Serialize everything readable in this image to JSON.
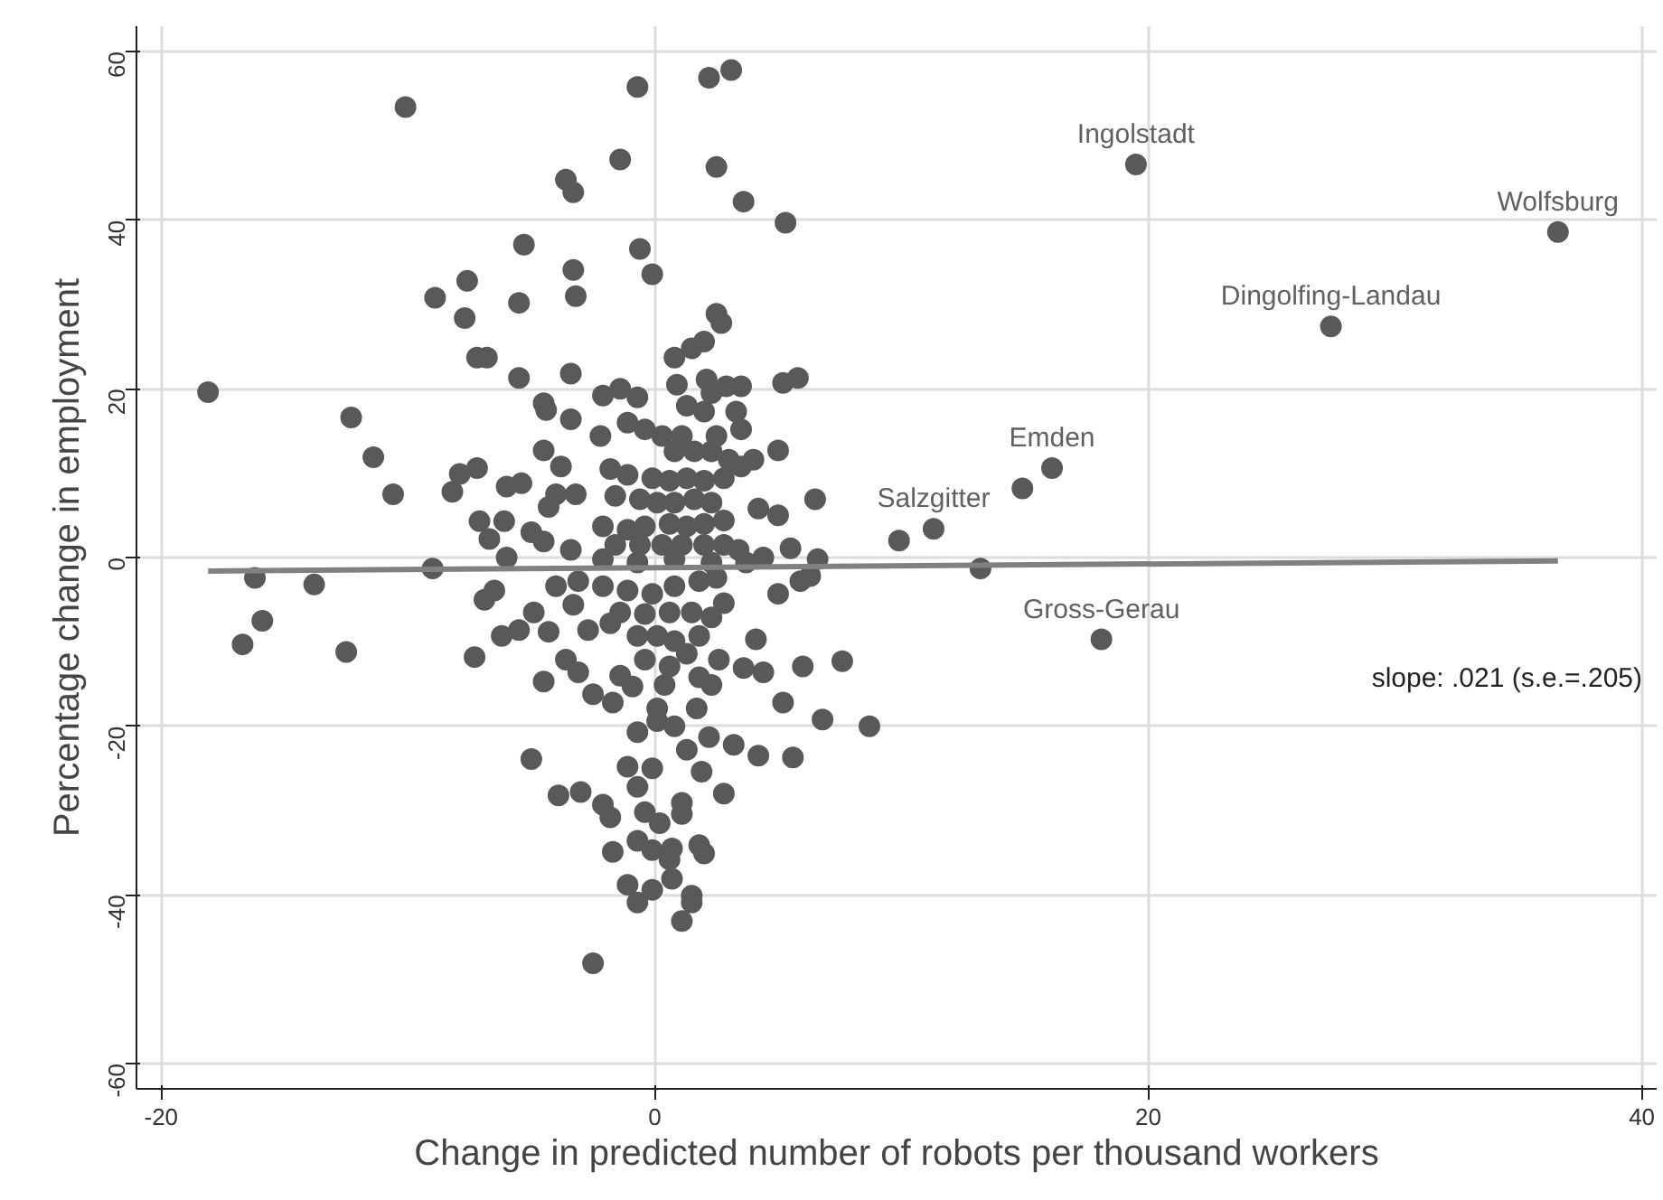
{
  "chart_data": {
    "type": "scatter",
    "xlabel": "Change in predicted number of robots per thousand workers",
    "ylabel": "Percentage change in employment",
    "xlim": [
      -21,
      40.6
    ],
    "ylim": [
      -63,
      63
    ],
    "xticks": [
      -20,
      0,
      20,
      40
    ],
    "yticks": [
      -60,
      -40,
      -20,
      0,
      20,
      40,
      60
    ],
    "grid": true,
    "series": [
      {
        "color": "#595959",
        "marker": "circle",
        "x": [
          19.5,
          36.6,
          27.4,
          16.1,
          14.9,
          11.3,
          9.9,
          13.2,
          18.1,
          7.6,
          -10.1,
          -0.7,
          2.2,
          3.1,
          -1.4,
          2.5,
          -3.6,
          -3.3,
          3.6,
          5.3,
          -5.3,
          -0.6,
          -0.1,
          -3.3,
          -3.2,
          -7.6,
          -8.9,
          -5.5,
          -7.7,
          2.5,
          2.7,
          -7.2,
          -6.8,
          2.0,
          1.5,
          0.8,
          -5.5,
          -3.4,
          -18.1,
          5.2,
          5.8,
          0.9,
          2.1,
          3.5,
          2.9,
          -12.3,
          -11.4,
          -10.6,
          -8.2,
          -7.9,
          -7.2,
          -6.0,
          -5.4,
          -7.1,
          -6.1,
          -6.7,
          -4.5,
          -4.4,
          -3.4,
          -2.1,
          -1.4,
          -0.7,
          -2.2,
          -1.1,
          -4.5,
          -3.8,
          -4.0,
          -3.2,
          -4.3,
          -5.0,
          -4.5,
          -3.4,
          5.0,
          4.0,
          4.2,
          5.0,
          6.5,
          5.5,
          3.4,
          4.4,
          6.6,
          -0.4,
          0.3,
          1.1,
          0.8,
          1.6,
          2.3,
          -1.8,
          -1.1,
          -0.1,
          0.6,
          1.3,
          2.0,
          2.8,
          -1.6,
          -0.6,
          0.1,
          0.8,
          1.6,
          2.3,
          -2.1,
          -1.1,
          -0.4,
          0.6,
          1.3,
          2.0,
          2.8,
          -1.6,
          -0.6,
          0.3,
          1.1,
          2.0,
          2.8,
          1.3,
          2.0,
          3.3,
          3.5,
          2.5,
          3.0,
          3.5,
          2.3,
          -16.2,
          -13.8,
          -15.9,
          -16.7,
          -12.5,
          -9.0,
          -7.3,
          -6.9,
          -6.5,
          -6.2,
          -5.5,
          -4.9,
          -4.3,
          -6.0,
          -4.5,
          -3.6,
          -3.1,
          -2.5,
          -1.7,
          -2.7,
          -1.8,
          -4.0,
          -3.3,
          -1.4,
          -0.9,
          -0.4,
          0.1,
          0.6,
          1.3,
          1.8,
          2.3,
          2.8,
          2.6,
          2.3,
          4.1,
          3.6,
          4.4,
          5.0,
          5.9,
          6.3,
          6.0,
          5.2,
          6.8,
          8.7,
          -0.7,
          0.1,
          0.8,
          1.7,
          1.3,
          1.9,
          2.2,
          3.2,
          4.2,
          5.6,
          -5.0,
          -3.9,
          -3.0,
          -2.1,
          -1.8,
          -1.1,
          -0.7,
          -0.1,
          -0.4,
          0.2,
          1.1,
          1.1,
          2.8,
          -1.7,
          -0.7,
          -0.1,
          0.7,
          0.6,
          1.8,
          2.0,
          -1.1,
          -0.1,
          -0.7,
          0.7,
          1.5,
          1.5,
          1.1,
          -2.5,
          -3.1,
          -2.1,
          -1.1,
          -0.1,
          0.8,
          1.8,
          2.5,
          -1.4,
          -0.4,
          0.6,
          1.5,
          -0.7,
          0.8,
          0.4,
          1.8,
          0.1,
          -2.1,
          -0.7,
          0.8,
          2.3,
          3.7
        ],
        "values": [
          46.6,
          38.6,
          27.4,
          10.6,
          8.2,
          3.4,
          2.0,
          -1.3,
          -9.7,
          -12.3,
          53.4,
          55.8,
          56.9,
          57.8,
          47.2,
          46.3,
          44.8,
          43.3,
          42.2,
          39.7,
          37.1,
          36.6,
          33.6,
          34.1,
          31.0,
          32.8,
          30.8,
          30.2,
          28.4,
          28.9,
          27.8,
          23.7,
          23.7,
          25.6,
          24.8,
          23.7,
          21.3,
          21.8,
          19.6,
          20.7,
          21.3,
          20.5,
          21.1,
          20.3,
          20.3,
          16.6,
          11.9,
          7.5,
          7.8,
          9.9,
          10.6,
          8.4,
          8.8,
          4.3,
          4.3,
          2.2,
          18.3,
          17.5,
          16.4,
          19.2,
          20.0,
          19.0,
          14.4,
          16.0,
          12.7,
          10.8,
          7.5,
          7.5,
          6.0,
          3.0,
          1.9,
          0.9,
          12.7,
          11.6,
          5.8,
          5.0,
          6.9,
          1.1,
          0.9,
          0.0,
          -0.2,
          15.2,
          14.4,
          14.4,
          12.6,
          12.6,
          12.6,
          10.5,
          9.8,
          9.4,
          9.1,
          9.4,
          9.1,
          9.4,
          7.3,
          6.9,
          6.5,
          6.5,
          6.9,
          6.5,
          3.7,
          3.3,
          3.7,
          4.0,
          3.7,
          4.0,
          4.4,
          1.5,
          1.5,
          1.5,
          1.5,
          1.5,
          1.5,
          18.0,
          17.3,
          17.3,
          15.2,
          14.4,
          11.6,
          10.8,
          19.5,
          -2.4,
          -3.2,
          -7.5,
          -10.3,
          -11.2,
          -1.3,
          -11.8,
          -5.0,
          -3.9,
          -9.3,
          -8.6,
          -6.5,
          -8.8,
          0.0,
          -14.7,
          -12.1,
          -13.6,
          -16.2,
          -17.2,
          -8.6,
          -7.8,
          -3.4,
          -5.6,
          -14.0,
          -15.3,
          -12.1,
          -9.3,
          -12.9,
          -11.4,
          -9.3,
          -7.1,
          -5.4,
          -12.1,
          -15.1,
          -9.7,
          -13.1,
          -13.6,
          -4.3,
          -2.8,
          -2.2,
          -12.9,
          -17.2,
          -19.2,
          -20.0,
          -20.7,
          -19.4,
          -20.0,
          -17.9,
          -22.8,
          -25.4,
          -21.3,
          -22.2,
          -23.5,
          -23.7,
          -23.9,
          -28.2,
          -27.8,
          -29.3,
          -30.8,
          -24.8,
          -27.2,
          -25.0,
          -30.2,
          -31.5,
          -29.1,
          -30.4,
          -28.0,
          -34.9,
          -33.6,
          -34.7,
          -34.5,
          -35.8,
          -34.1,
          -35.1,
          -38.8,
          -39.4,
          -40.9,
          -38.1,
          -40.1,
          -40.9,
          -43.1,
          -48.1,
          -2.8,
          -3.4,
          -3.9,
          -4.3,
          -3.4,
          -2.8,
          -2.4,
          -6.5,
          -6.7,
          -6.5,
          -6.5,
          -9.3,
          -9.9,
          -15.1,
          -14.2,
          -17.9,
          -0.2,
          -0.6,
          -0.2,
          -0.6,
          -0.6
        ]
      },
      {
        "type": "line",
        "color": "#808080",
        "x": [
          -18.1,
          36.6
        ],
        "values": [
          -1.6,
          -0.4
        ]
      }
    ],
    "annotations": [
      {
        "text": "Ingolstadt",
        "x": 19.5,
        "y": 46.6
      },
      {
        "text": "Wolfsburg",
        "x": 36.6,
        "y": 38.6
      },
      {
        "text": "Dingolfing-Landau",
        "x": 27.4,
        "y": 27.4
      },
      {
        "text": "Emden",
        "x": 16.1,
        "y": 10.6
      },
      {
        "text": "Salzgitter",
        "x": 11.3,
        "y": 3.4
      },
      {
        "text": "Gross-Gerau",
        "x": 18.1,
        "y": -9.7
      },
      "slope: .021 (s.e.=.205)"
    ]
  }
}
